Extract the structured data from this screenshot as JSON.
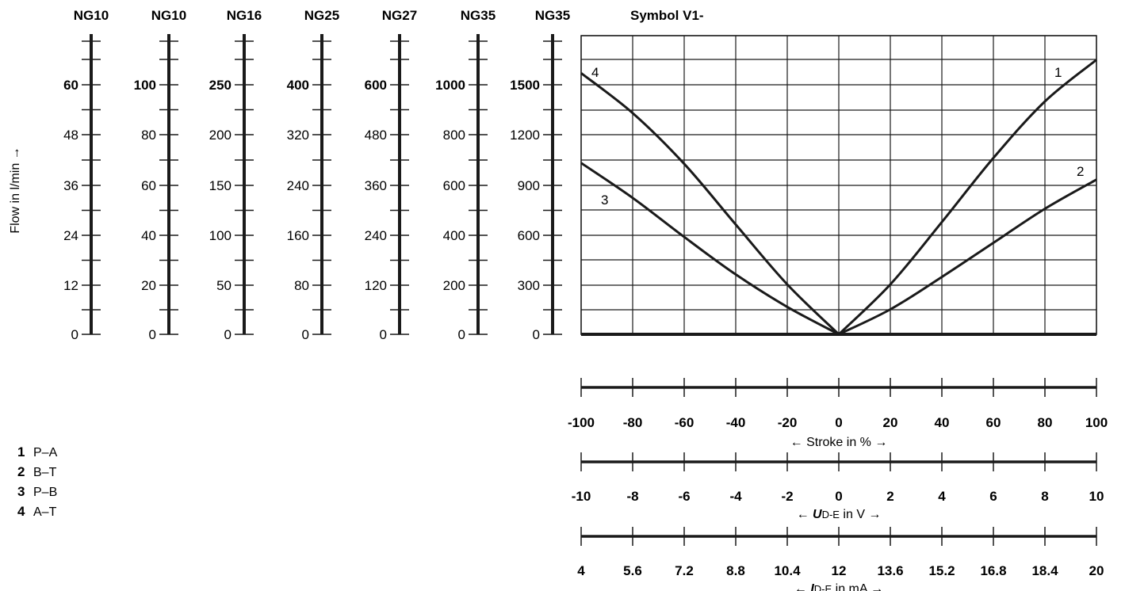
{
  "chart_data": {
    "type": "line",
    "title": "Symbol V1-",
    "ylabel": "Flow in l/min →",
    "flow_scales": [
      {
        "name": "NG10",
        "ticks": [
          "0",
          "12",
          "24",
          "36",
          "48",
          "60"
        ]
      },
      {
        "name": "NG10",
        "ticks": [
          "0",
          "20",
          "40",
          "60",
          "80",
          "100"
        ]
      },
      {
        "name": "NG16",
        "ticks": [
          "0",
          "50",
          "100",
          "150",
          "200",
          "250"
        ]
      },
      {
        "name": "NG25",
        "ticks": [
          "0",
          "80",
          "160",
          "240",
          "320",
          "400"
        ]
      },
      {
        "name": "NG27",
        "ticks": [
          "0",
          "120",
          "240",
          "360",
          "480",
          "600"
        ]
      },
      {
        "name": "NG35",
        "ticks": [
          "0",
          "200",
          "400",
          "600",
          "800",
          "1000"
        ]
      },
      {
        "name": "NG35",
        "ticks": [
          "0",
          "300",
          "600",
          "900",
          "1200",
          "1500"
        ]
      }
    ],
    "x_axes": [
      {
        "label": "← Stroke in % →",
        "ticks": [
          "-100",
          "-80",
          "-60",
          "-40",
          "-20",
          "0",
          "20",
          "40",
          "60",
          "80",
          "100"
        ]
      },
      {
        "label_main": "← ",
        "label_sym": "U",
        "label_sub": "D-E",
        "label_unit": " in V →",
        "ticks": [
          "-10",
          "-8",
          "-6",
          "-4",
          "-2",
          "0",
          "2",
          "4",
          "6",
          "8",
          "10"
        ]
      },
      {
        "label_main": "← ",
        "label_sym": "I",
        "label_sub": "D-E",
        "label_unit": " in mA →",
        "ticks": [
          "4",
          "5.6",
          "7.2",
          "8.8",
          "10.4",
          "12",
          "13.6",
          "15.2",
          "16.8",
          "18.4",
          "20"
        ]
      }
    ],
    "xlim": [
      -100,
      100
    ],
    "ylim_reference": [
      0,
      1500
    ],
    "grid": true,
    "series": [
      {
        "label": "1",
        "x": [
          0,
          20,
          40,
          60,
          80,
          100
        ],
        "y": [
          0,
          300,
          675,
          1060,
          1400,
          1650
        ]
      },
      {
        "label": "2",
        "x": [
          0,
          20,
          40,
          60,
          80,
          100
        ],
        "y": [
          0,
          150,
          345,
          550,
          755,
          930
        ]
      },
      {
        "label": "3",
        "x": [
          0,
          -20,
          -40,
          -60,
          -80,
          -100
        ],
        "y": [
          0,
          165,
          360,
          585,
          820,
          1030
        ]
      },
      {
        "label": "4",
        "x": [
          0,
          -20,
          -40,
          -60,
          -80,
          -100
        ],
        "y": [
          0,
          300,
          660,
          1025,
          1330,
          1570
        ]
      }
    ],
    "legend": [
      {
        "num": "1",
        "text": "P–A"
      },
      {
        "num": "2",
        "text": "B–T"
      },
      {
        "num": "3",
        "text": "P–B"
      },
      {
        "num": "4",
        "text": "A–T"
      }
    ]
  }
}
